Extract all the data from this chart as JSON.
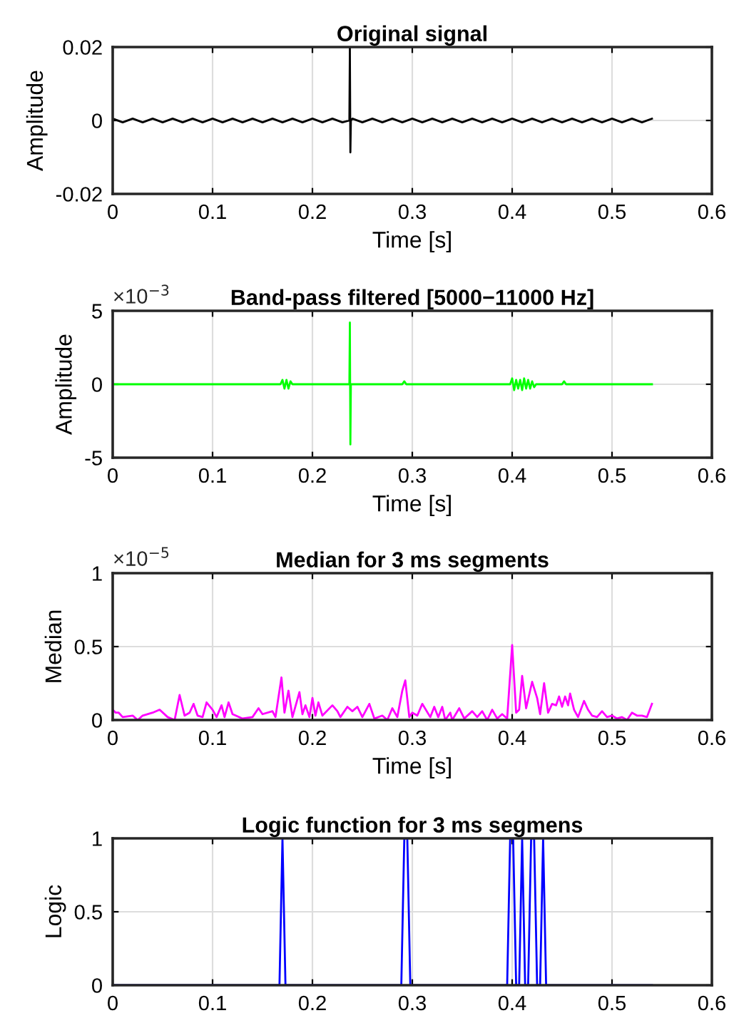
{
  "chart_data": [
    {
      "type": "line",
      "title": "Original signal",
      "xlabel": "Time [s]",
      "ylabel": "Amplitude",
      "xlim": [
        0,
        0.6
      ],
      "xticks": [
        0,
        0.1,
        0.2,
        0.3,
        0.4,
        0.5,
        0.6
      ],
      "ylim": [
        -0.02,
        0.02
      ],
      "yticks": [
        -0.02,
        0,
        0.02
      ],
      "grid": true,
      "series": [
        {
          "color": "#000000",
          "x": [
            0,
            0.01,
            0.02,
            0.03,
            0.04,
            0.05,
            0.06,
            0.07,
            0.08,
            0.09,
            0.1,
            0.11,
            0.12,
            0.13,
            0.14,
            0.15,
            0.16,
            0.17,
            0.18,
            0.19,
            0.2,
            0.21,
            0.22,
            0.23,
            0.237,
            0.2375,
            0.238,
            0.2385,
            0.24,
            0.25,
            0.26,
            0.27,
            0.28,
            0.29,
            0.3,
            0.31,
            0.32,
            0.33,
            0.34,
            0.35,
            0.36,
            0.37,
            0.38,
            0.39,
            0.4,
            0.41,
            0.42,
            0.43,
            0.44,
            0.45,
            0.46,
            0.47,
            0.48,
            0.49,
            0.5,
            0.51,
            0.52,
            0.53,
            0.54
          ],
          "values": [
            0.0005,
            -0.0005,
            0.0005,
            -0.0005,
            0.0005,
            -0.0005,
            0.0005,
            -0.0005,
            0.0005,
            -0.0005,
            0.0005,
            -0.0005,
            0.0005,
            -0.0005,
            0.0005,
            -0.0005,
            0.0005,
            -0.0005,
            0.0005,
            -0.0005,
            0.0005,
            -0.0005,
            0.0005,
            -0.0005,
            0,
            0.0198,
            -0.0087,
            0,
            0.0005,
            -0.0005,
            0.0005,
            -0.0005,
            0.0005,
            -0.0005,
            0.0005,
            -0.0005,
            0.0005,
            -0.0005,
            0.0005,
            -0.0005,
            0.0005,
            -0.0005,
            0.0005,
            -0.0005,
            0.0005,
            -0.0005,
            0.0005,
            -0.0005,
            0.0005,
            -0.0005,
            0.0005,
            -0.0005,
            0.0005,
            -0.0005,
            0.0005,
            -0.0005,
            0.0005,
            -0.0005,
            0.0005
          ]
        }
      ]
    },
    {
      "type": "line",
      "title": "Band-pass filtered [5000−11000 Hz]",
      "xlabel": "Time [s]",
      "ylabel": "Amplitude",
      "annotations": [
        "×10$^{−3}$"
      ],
      "xlim": [
        0,
        0.6
      ],
      "xticks": [
        0,
        0.1,
        0.2,
        0.3,
        0.4,
        0.5,
        0.6
      ],
      "ylim": [
        -5,
        5
      ],
      "yticks": [
        -5,
        0,
        5
      ],
      "grid": true,
      "series": [
        {
          "color": "#00ff00",
          "x": [
            0,
            0.168,
            0.17,
            0.172,
            0.174,
            0.176,
            0.178,
            0.18,
            0.237,
            0.2375,
            0.238,
            0.2385,
            0.29,
            0.292,
            0.294,
            0.398,
            0.4,
            0.402,
            0.404,
            0.406,
            0.408,
            0.41,
            0.412,
            0.414,
            0.416,
            0.418,
            0.42,
            0.422,
            0.424,
            0.45,
            0.452,
            0.454,
            0.54
          ],
          "values": [
            0,
            0,
            0.3,
            -0.3,
            0.3,
            -0.3,
            0.2,
            0,
            0,
            4.2,
            -4.1,
            0,
            0,
            0.2,
            0,
            0,
            0.4,
            -0.4,
            0.3,
            -0.3,
            0.3,
            -0.4,
            0.4,
            -0.3,
            0.3,
            -0.3,
            0.2,
            -0.2,
            0,
            0,
            0.2,
            0,
            0
          ]
        }
      ]
    },
    {
      "type": "line",
      "title": "Median for 3 ms segments",
      "xlabel": "Time [s]",
      "ylabel": "Median",
      "annotations": [
        "×10$^{−5}$"
      ],
      "xlim": [
        0,
        0.6
      ],
      "xticks": [
        0,
        0.1,
        0.2,
        0.3,
        0.4,
        0.5,
        0.6
      ],
      "ylim": [
        0,
        1
      ],
      "yticks": [
        0,
        0.5,
        1
      ],
      "grid": true,
      "series": [
        {
          "color": "#ff00ff",
          "x": [
            0,
            0.003,
            0.006,
            0.01,
            0.02,
            0.025,
            0.03,
            0.04,
            0.047,
            0.055,
            0.062,
            0.067,
            0.072,
            0.077,
            0.081,
            0.085,
            0.09,
            0.094,
            0.1,
            0.104,
            0.109,
            0.112,
            0.116,
            0.12,
            0.13,
            0.14,
            0.146,
            0.15,
            0.16,
            0.163,
            0.169,
            0.172,
            0.176,
            0.18,
            0.187,
            0.19,
            0.193,
            0.197,
            0.2,
            0.203,
            0.206,
            0.21,
            0.22,
            0.225,
            0.228,
            0.235,
            0.24,
            0.245,
            0.25,
            0.257,
            0.262,
            0.27,
            0.275,
            0.28,
            0.285,
            0.29,
            0.293,
            0.297,
            0.3,
            0.305,
            0.31,
            0.318,
            0.322,
            0.326,
            0.33,
            0.333,
            0.338,
            0.34,
            0.347,
            0.352,
            0.36,
            0.365,
            0.37,
            0.375,
            0.38,
            0.385,
            0.39,
            0.395,
            0.4,
            0.404,
            0.407,
            0.41,
            0.414,
            0.418,
            0.42,
            0.425,
            0.428,
            0.432,
            0.436,
            0.44,
            0.444,
            0.447,
            0.45,
            0.453,
            0.456,
            0.458,
            0.462,
            0.466,
            0.472,
            0.476,
            0.48,
            0.485,
            0.49,
            0.495,
            0.5,
            0.505,
            0.51,
            0.515,
            0.52,
            0.525,
            0.53,
            0.535,
            0.54
          ],
          "values": [
            0.07,
            0.05,
            0.05,
            0.02,
            0.03,
            0,
            0.03,
            0.05,
            0.07,
            0.02,
            0,
            0.17,
            0.03,
            0.05,
            0.11,
            0.03,
            0.02,
            0.12,
            0.07,
            0.02,
            0.1,
            0.02,
            0.12,
            0.04,
            0.01,
            0.02,
            0.08,
            0.04,
            0.06,
            0.02,
            0.29,
            0.05,
            0.2,
            0.02,
            0.19,
            0.04,
            0.1,
            0.02,
            0.15,
            0.03,
            0.12,
            0.03,
            0.1,
            0.06,
            0.02,
            0.09,
            0.06,
            0.09,
            0.02,
            0.11,
            0.01,
            0.03,
            0,
            0.08,
            0.02,
            0.2,
            0.27,
            0.02,
            0.05,
            0.03,
            0.11,
            0.02,
            0.09,
            0.02,
            0.09,
            0,
            0.05,
            0,
            0.08,
            0.01,
            0.06,
            0.02,
            0.06,
            0,
            0.07,
            0.01,
            0.04,
            0.01,
            0.51,
            0.05,
            0.07,
            0.3,
            0.08,
            0.2,
            0.26,
            0.15,
            0.04,
            0.25,
            0.05,
            0.11,
            0.1,
            0.16,
            0.09,
            0.16,
            0.1,
            0.18,
            0.07,
            0.02,
            0.13,
            0.07,
            0.03,
            0.02,
            0.06,
            0.02,
            0.03,
            0.01,
            0.02,
            0,
            0.05,
            0.03,
            0.03,
            0.02,
            0.11
          ]
        }
      ]
    },
    {
      "type": "line",
      "title": "Logic function for 3 ms segmens",
      "ylabel": "Logic",
      "xlim": [
        0,
        0.6
      ],
      "xticks": [
        0,
        0.1,
        0.2,
        0.3,
        0.4,
        0.5,
        0.6
      ],
      "ylim": [
        0,
        1
      ],
      "yticks": [
        0,
        0.5,
        1
      ],
      "grid": true,
      "series": [
        {
          "color": "#0000ff",
          "x": [
            0,
            0.167,
            0.17,
            0.173,
            0.289,
            0.292,
            0.295,
            0.298,
            0.395,
            0.398,
            0.401,
            0.404,
            0.407,
            0.41,
            0.413,
            0.416,
            0.419,
            0.422,
            0.425,
            0.428,
            0.431,
            0.434,
            0.54
          ],
          "values": [
            0,
            0,
            1,
            0,
            0,
            1,
            1,
            0,
            0,
            1,
            1,
            0,
            0,
            1,
            0,
            0,
            1,
            1,
            0,
            0,
            1,
            0,
            0
          ]
        }
      ]
    }
  ]
}
